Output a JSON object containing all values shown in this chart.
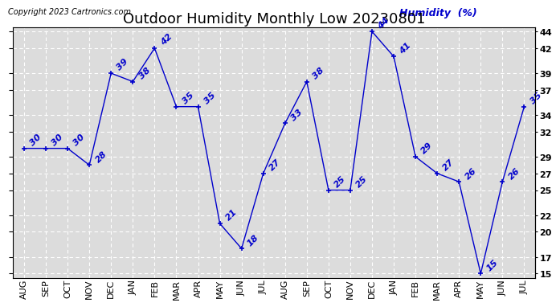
{
  "title": "Outdoor Humidity Monthly Low 20230801",
  "copyright": "Copyright 2023 Cartronics.com",
  "humidity_label": "Humidity  (%)",
  "x_labels": [
    "AUG",
    "SEP",
    "OCT",
    "NOV",
    "DEC",
    "JAN",
    "FEB",
    "MAR",
    "APR",
    "MAY",
    "JUN",
    "JUL",
    "AUG",
    "SEP",
    "OCT",
    "NOV",
    "DEC",
    "JAN",
    "FEB",
    "MAR",
    "APR",
    "MAY",
    "JUN",
    "JUL"
  ],
  "y_values": [
    30,
    30,
    30,
    28,
    39,
    38,
    42,
    35,
    35,
    21,
    18,
    27,
    33,
    38,
    25,
    25,
    44,
    41,
    29,
    27,
    26,
    15,
    26,
    35
  ],
  "line_color": "#0000cc",
  "ylim_min": 15,
  "ylim_max": 44,
  "yticks": [
    15,
    17,
    20,
    22,
    25,
    27,
    29,
    32,
    34,
    37,
    39,
    42,
    44
  ],
  "background_color": "#ffffff",
  "plot_bg_color": "#dcdcdc",
  "grid_color": "#ffffff",
  "title_fontsize": 13,
  "label_fontsize": 8,
  "annotation_fontsize": 8,
  "copyright_fontsize": 7,
  "humidity_label_fontsize": 9
}
